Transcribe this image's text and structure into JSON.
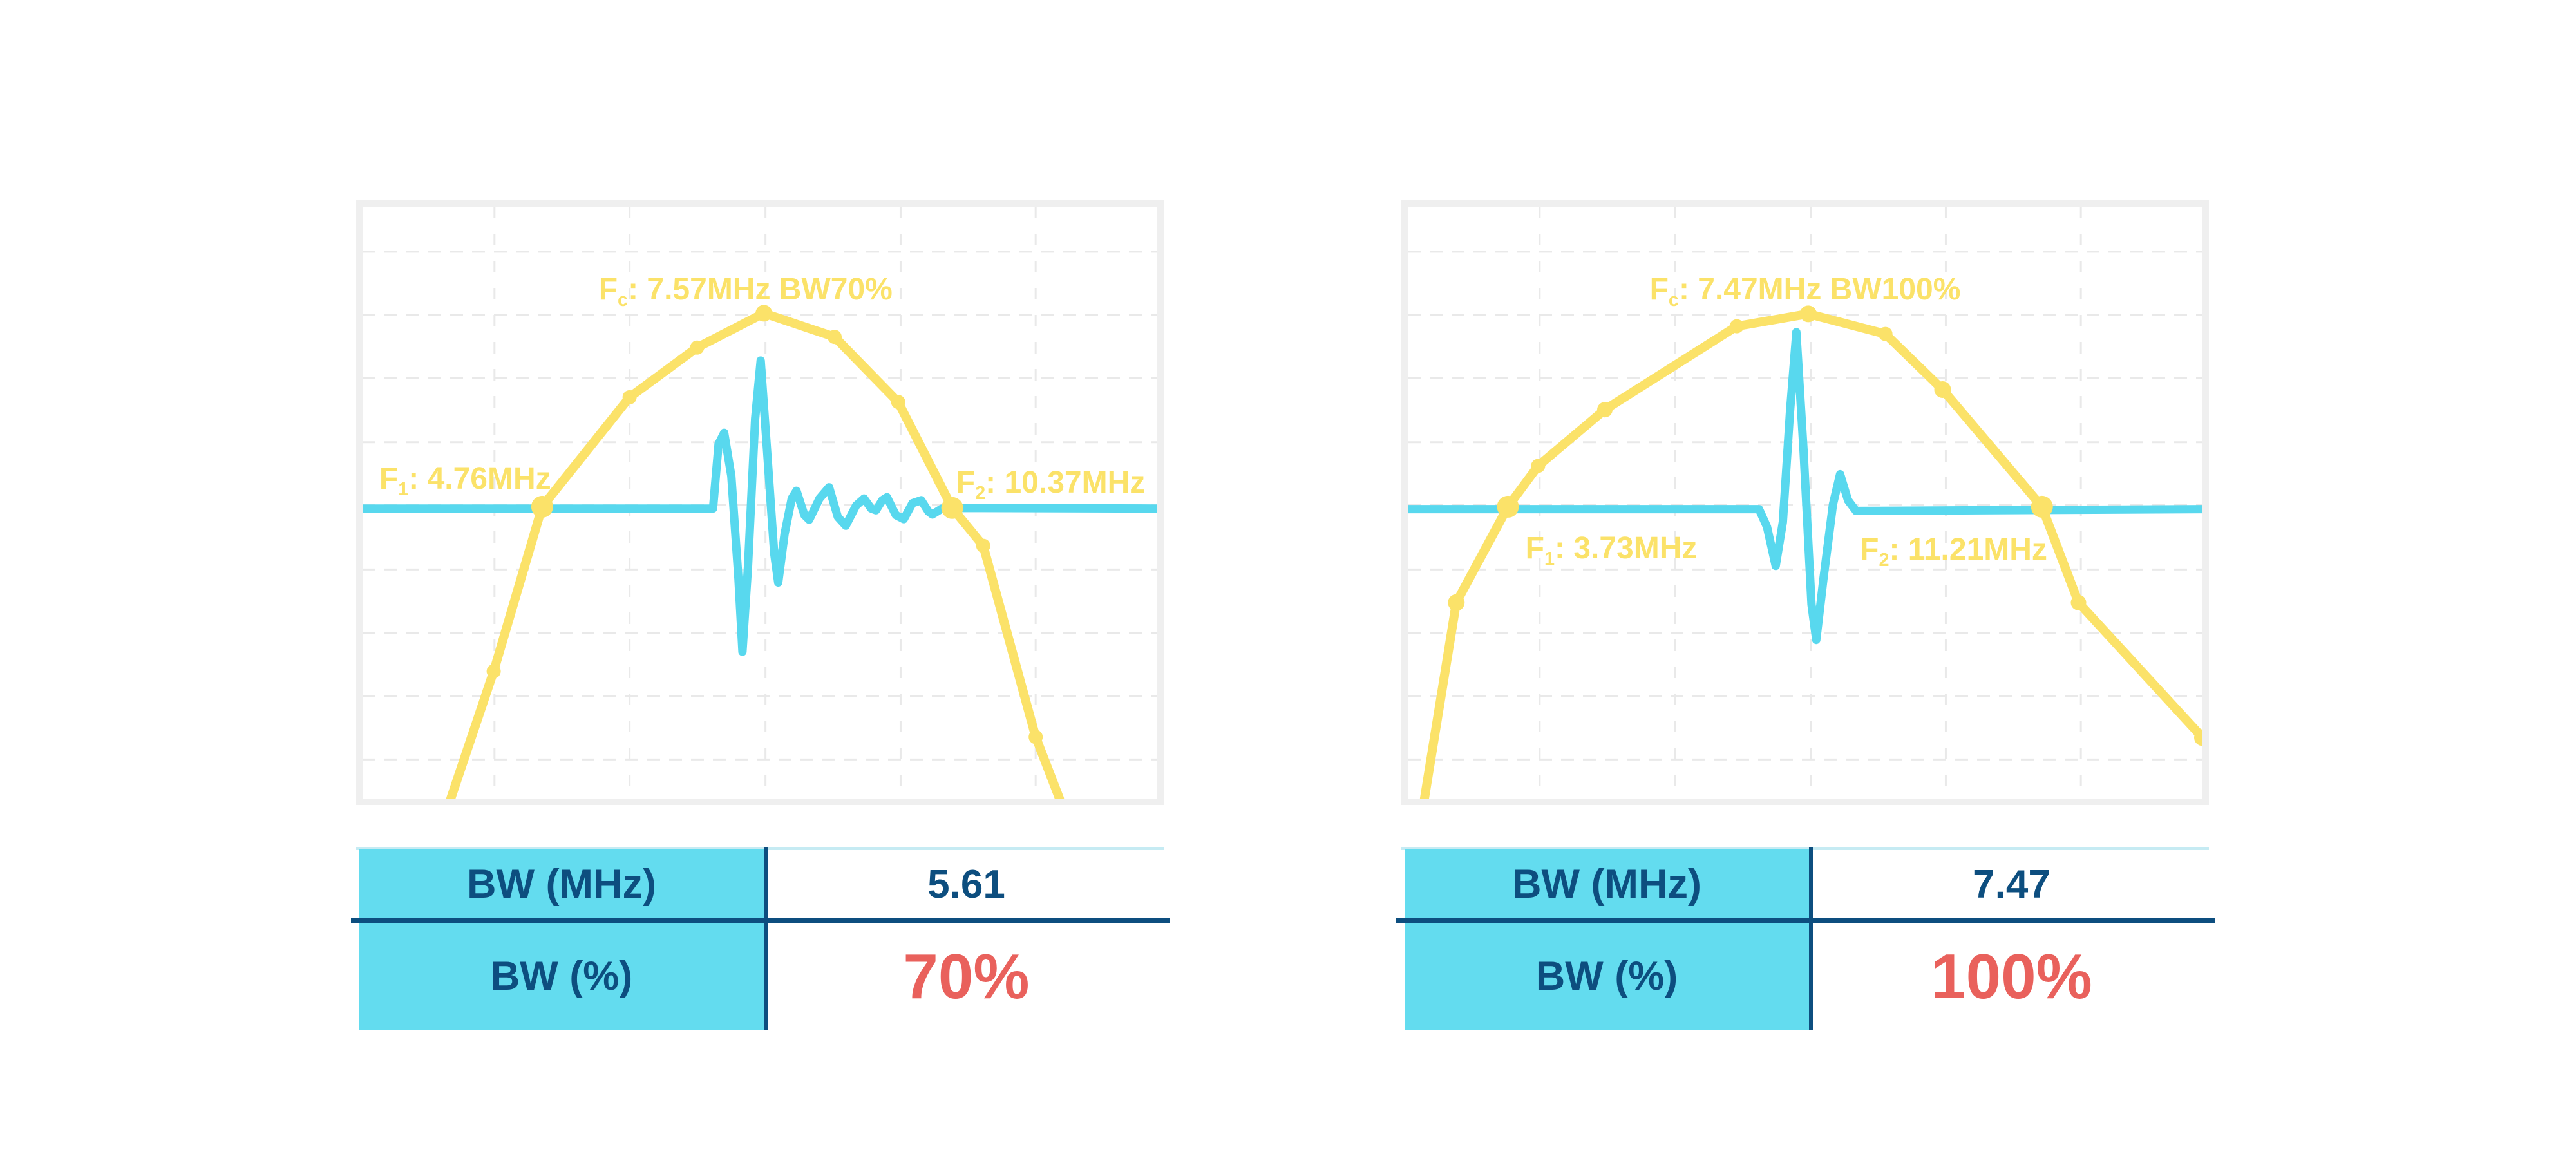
{
  "colors": {
    "yellow": "#FBE269",
    "cyan": "#58D8EE",
    "cell_cyan": "#63DCEF",
    "navy": "#0D4E7F",
    "red": "#E9615C",
    "frame": "#EFEFEF",
    "grid": "#E9E9E9",
    "table_top_line": "#C6EBF3"
  },
  "chart_data": [
    {
      "type": "line",
      "title": {
        "prefix": "F",
        "sub": "c",
        "rest": ": 7.57MHz BW70%"
      },
      "f1_label": {
        "prefix": "F",
        "sub": "1",
        "rest": ": 4.76MHz"
      },
      "f2_label": {
        "prefix": "F",
        "sub": "2",
        "rest": ": 10.37MHz"
      },
      "center_freq_mhz": 7.57,
      "bandwidth_pct": 70,
      "bandwidth_mhz": 5.61,
      "f1_mhz": 4.76,
      "f2_mhz": 10.37,
      "x_range_mhz": [
        2.3,
        13.2
      ],
      "y_axis": "unlabeled amplitude; y values are fractions of plot height from top, baseline = -6dB crossing level",
      "grid": {
        "h_fracs": [
          0.076,
          0.183,
          0.29,
          0.398,
          0.504,
          0.613,
          0.72,
          0.827,
          0.934
        ],
        "v_fracs": [
          0.166,
          0.336,
          0.507,
          0.677,
          0.847
        ]
      },
      "baseline_y_frac": 0.51,
      "spectrum": {
        "color_key": "yellow",
        "points": [
          {
            "f": 3.51,
            "x": 0.111,
            "y": 1.0,
            "r": 0
          },
          {
            "f": 4.1,
            "x": 0.165,
            "y": 0.785,
            "r": 11
          },
          {
            "f": 4.76,
            "x": 0.226,
            "y": 0.507,
            "r": 17
          },
          {
            "f": 5.96,
            "x": 0.336,
            "y": 0.322,
            "r": 11
          },
          {
            "f": 6.88,
            "x": 0.421,
            "y": 0.238,
            "r": 11
          },
          {
            "f": 7.79,
            "x": 0.505,
            "y": 0.18,
            "r": 13
          },
          {
            "f": 8.76,
            "x": 0.594,
            "y": 0.22,
            "r": 11
          },
          {
            "f": 9.64,
            "x": 0.674,
            "y": 0.33,
            "r": 11
          },
          {
            "f": 10.37,
            "x": 0.742,
            "y": 0.509,
            "r": 17
          },
          {
            "f": 10.8,
            "x": 0.781,
            "y": 0.573,
            "r": 11
          },
          {
            "f": 11.52,
            "x": 0.847,
            "y": 0.896,
            "r": 11
          },
          {
            "f": 11.84,
            "x": 0.877,
            "y": 1.0,
            "r": 0
          }
        ]
      },
      "pulse": {
        "color_key": "cyan",
        "points": [
          [
            0,
            0.51
          ],
          [
            0.441,
            0.51
          ],
          [
            0.448,
            0.401
          ],
          [
            0.455,
            0.382
          ],
          [
            0.464,
            0.455
          ],
          [
            0.473,
            0.629
          ],
          [
            0.478,
            0.752
          ],
          [
            0.485,
            0.608
          ],
          [
            0.494,
            0.358
          ],
          [
            0.501,
            0.26
          ],
          [
            0.509,
            0.412
          ],
          [
            0.518,
            0.586
          ],
          [
            0.523,
            0.635
          ],
          [
            0.531,
            0.553
          ],
          [
            0.54,
            0.493
          ],
          [
            0.546,
            0.48
          ],
          [
            0.556,
            0.521
          ],
          [
            0.562,
            0.529
          ],
          [
            0.575,
            0.493
          ],
          [
            0.587,
            0.474
          ],
          [
            0.598,
            0.524
          ],
          [
            0.608,
            0.539
          ],
          [
            0.621,
            0.505
          ],
          [
            0.631,
            0.493
          ],
          [
            0.64,
            0.51
          ],
          [
            0.646,
            0.513
          ],
          [
            0.654,
            0.496
          ],
          [
            0.66,
            0.491
          ],
          [
            0.671,
            0.521
          ],
          [
            0.681,
            0.528
          ],
          [
            0.692,
            0.501
          ],
          [
            0.703,
            0.496
          ],
          [
            0.712,
            0.515
          ],
          [
            0.717,
            0.52
          ],
          [
            0.729,
            0.51
          ],
          [
            0.742,
            0.509
          ],
          [
            1,
            0.51
          ]
        ]
      },
      "label_pos": {
        "fc": {
          "cx": 0.482,
          "top": 0.112
        },
        "f1": {
          "left": 0.021,
          "top": 0.432
        },
        "f2": {
          "left": 0.747,
          "top": 0.438
        }
      }
    },
    {
      "type": "line",
      "title": {
        "prefix": "F",
        "sub": "c",
        "rest": ": 7.47MHz BW100%"
      },
      "f1_label": {
        "prefix": "F",
        "sub": "1",
        "rest": ": 3.73MHz"
      },
      "f2_label": {
        "prefix": "F",
        "sub": "2",
        "rest": ": 11.21MHz"
      },
      "center_freq_mhz": 7.47,
      "bandwidth_pct": 100,
      "bandwidth_mhz": 7.47,
      "f1_mhz": 3.73,
      "f2_mhz": 11.21,
      "x_range_mhz": [
        2.4,
        13.5
      ],
      "y_axis": "unlabeled amplitude; y values are fractions of plot height from top, baseline = -6dB crossing level",
      "grid": {
        "h_fracs": [
          0.076,
          0.183,
          0.29,
          0.398,
          0.504,
          0.613,
          0.72,
          0.827,
          0.934
        ],
        "v_fracs": [
          0.166,
          0.336,
          0.507,
          0.677,
          0.847
        ]
      },
      "baseline_y_frac": 0.511,
      "spectrum": {
        "color_key": "yellow",
        "points": [
          {
            "f": 2.56,
            "x": 0.021,
            "y": 1.0,
            "r": 0
          },
          {
            "f": 3.0,
            "x": 0.061,
            "y": 0.669,
            "r": 13
          },
          {
            "f": 3.73,
            "x": 0.126,
            "y": 0.507,
            "r": 17
          },
          {
            "f": 4.15,
            "x": 0.164,
            "y": 0.438,
            "r": 11
          },
          {
            "f": 5.08,
            "x": 0.248,
            "y": 0.343,
            "r": 12
          },
          {
            "f": 6.93,
            "x": 0.414,
            "y": 0.202,
            "r": 11
          },
          {
            "f": 7.94,
            "x": 0.504,
            "y": 0.181,
            "r": 13
          },
          {
            "f": 9.02,
            "x": 0.601,
            "y": 0.215,
            "r": 11
          },
          {
            "f": 9.81,
            "x": 0.673,
            "y": 0.309,
            "r": 13
          },
          {
            "f": 11.21,
            "x": 0.798,
            "y": 0.507,
            "r": 17
          },
          {
            "f": 11.72,
            "x": 0.844,
            "y": 0.669,
            "r": 12
          },
          {
            "f": 13.48,
            "x": 1.0,
            "y": 0.897,
            "r": 13
          }
        ]
      },
      "pulse": {
        "color_key": "cyan",
        "points": [
          [
            0,
            0.511
          ],
          [
            0.442,
            0.511
          ],
          [
            0.452,
            0.541
          ],
          [
            0.463,
            0.607
          ],
          [
            0.472,
            0.533
          ],
          [
            0.481,
            0.345
          ],
          [
            0.489,
            0.212
          ],
          [
            0.498,
            0.411
          ],
          [
            0.508,
            0.672
          ],
          [
            0.514,
            0.732
          ],
          [
            0.523,
            0.629
          ],
          [
            0.535,
            0.503
          ],
          [
            0.544,
            0.452
          ],
          [
            0.554,
            0.496
          ],
          [
            0.564,
            0.514
          ],
          [
            1,
            0.511
          ]
        ]
      },
      "label_pos": {
        "fc": {
          "cx": 0.5,
          "top": 0.112
        },
        "f1": {
          "left": 0.148,
          "top": 0.549
        },
        "f2": {
          "left": 0.569,
          "top": 0.552
        }
      }
    }
  ],
  "tables": [
    {
      "rows": [
        {
          "label": "BW (MHz)",
          "value": "5.61",
          "highlight": false
        },
        {
          "label": "BW (%)",
          "value": "70%",
          "highlight": true
        }
      ]
    },
    {
      "rows": [
        {
          "label": "BW (MHz)",
          "value": "7.47",
          "highlight": false
        },
        {
          "label": "BW (%)",
          "value": "100%",
          "highlight": true
        }
      ]
    }
  ]
}
